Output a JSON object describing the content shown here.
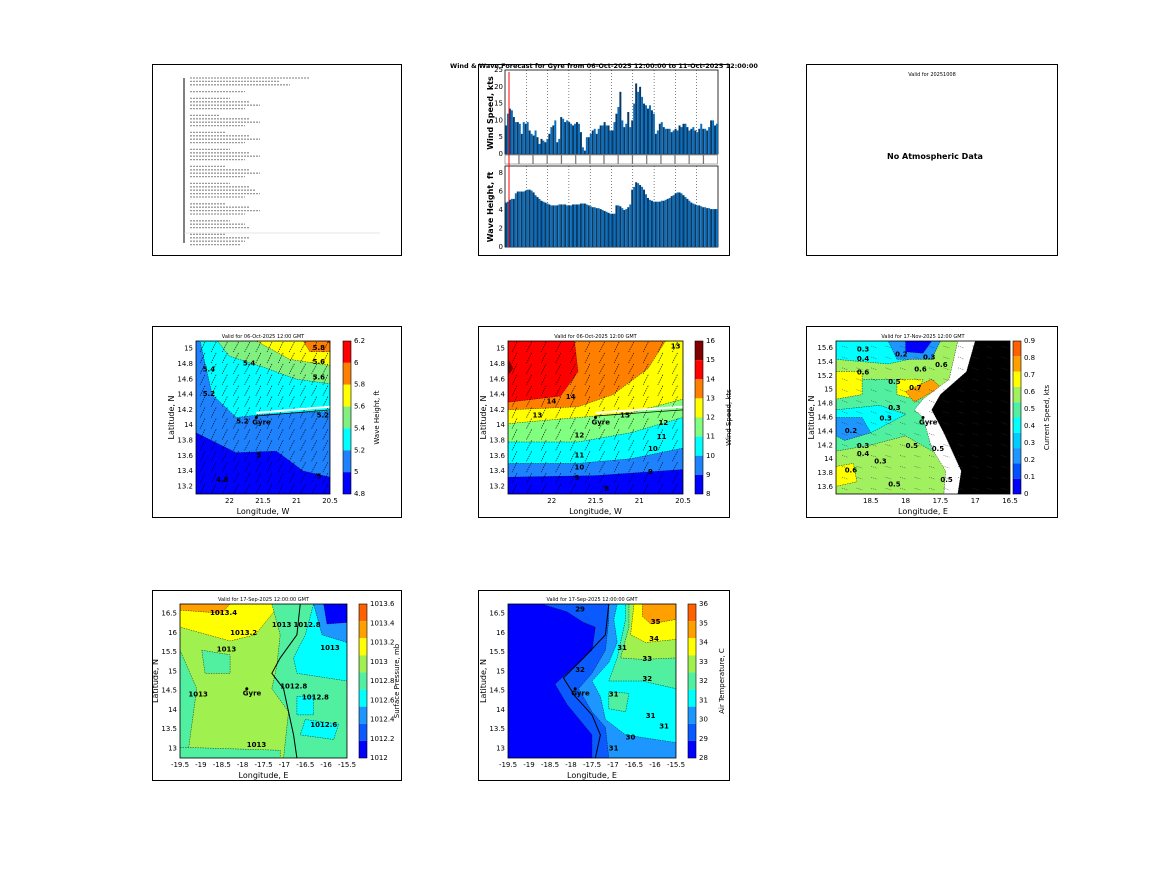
{
  "panels": {
    "summary": {
      "name": "forecast-summary-text"
    },
    "wind_wave": {
      "title": "Wind & Wave Forecast for Gyre from 06-Oct-2025 12:00:00 to 11-Oct-2025 12:00:00",
      "wind_ylabel": "Wind Speed, kts",
      "wave_ylabel": "Wave Height, ft",
      "wind_yticks": [
        "0",
        "5",
        "10",
        "15",
        "20",
        "25"
      ],
      "wave_yticks": [
        "0",
        "2",
        "4",
        "6",
        "8"
      ]
    },
    "atmos": {
      "title": "Valid for 20251008",
      "message": "No Atmospheric Data"
    },
    "wave_map": {
      "title": "Valid for 06-Oct-2025 12:00 GMT",
      "xlabel": "Longitude, W",
      "ylabel": "Latitude, N",
      "cbar_label": "Wave Height, ft",
      "xticks": [
        "22",
        "21.5",
        "21",
        "20.5"
      ],
      "yticks": [
        "15",
        "14.8",
        "14.6",
        "14.4",
        "14.2",
        "14",
        "13.8",
        "13.6",
        "13.4",
        "13.2"
      ],
      "cbar_ticks": [
        "6.2",
        "6",
        "5.8",
        "5.6",
        "5.4",
        "5.2",
        "5",
        "4.8"
      ],
      "contour_labels": [
        "5.4",
        "5.6",
        "5.8",
        "5.6",
        "5.4",
        "5.2",
        "5.2",
        "5.2",
        "5",
        "5",
        "4.8"
      ],
      "site": "Gyre"
    },
    "wind_map": {
      "title": "Valid for 06-Oct-2025 12:00 GMT",
      "xlabel": "Longitude, W",
      "ylabel": "Latitude, N",
      "cbar_label": "Wind Speed, kts",
      "xticks": [
        "22",
        "21.5",
        "21",
        "20.5"
      ],
      "yticks": [
        "15",
        "14.8",
        "14.6",
        "14.4",
        "14.2",
        "14",
        "13.8",
        "13.6",
        "13.4",
        "13.2"
      ],
      "cbar_ticks": [
        "16",
        "15",
        "14",
        "13",
        "12",
        "11",
        "10",
        "9",
        "8"
      ],
      "contour_labels": [
        "15",
        "13",
        "14",
        "14",
        "13",
        "12",
        "12",
        "11",
        "11",
        "10",
        "10",
        "9",
        "9",
        "8"
      ],
      "site": "Gyre"
    },
    "current_map": {
      "title": "Valid for 17-Nov-2025 12:00 GMT",
      "xlabel": "Longitude, E",
      "ylabel": "Latitude, N",
      "cbar_label": "Current Speed, kts",
      "xticks": [
        "18.5",
        "18",
        "17.5",
        "17",
        "16.5"
      ],
      "yticks": [
        "15.6",
        "15.4",
        "15.2",
        "15",
        "14.8",
        "14.6",
        "14.4",
        "14.2",
        "14",
        "13.8",
        "13.6"
      ],
      "cbar_ticks": [
        "0.9",
        "0.8",
        "0.7",
        "0.6",
        "0.5",
        "0.4",
        "0.3",
        "0.2",
        "0.1",
        "0"
      ],
      "contour_labels": [
        "0.3",
        "0.4",
        "0.6",
        "0.2",
        "0.3",
        "0.6",
        "0.6",
        "0.7",
        "0.5",
        "0.3",
        "0.3",
        "0.2",
        "0.3",
        "0.4",
        "0.3",
        "0.6",
        "0.5",
        "0.5",
        "0.5",
        "0.5"
      ],
      "site": "Gyre"
    },
    "pressure_map": {
      "title": "Valid for 17-Sep-2025 12:00:00 GMT",
      "xlabel": "Longitude, E",
      "ylabel": "Latitude, N",
      "cbar_label": "Surface Pressure, mb",
      "xticks": [
        "-19.5",
        "-19",
        "-18.5",
        "-18",
        "-17.5",
        "-17",
        "-16.5",
        "-16",
        "-15.5"
      ],
      "yticks": [
        "16.5",
        "16",
        "15.5",
        "15",
        "14.5",
        "14",
        "13.5",
        "13"
      ],
      "cbar_ticks": [
        "1013.6",
        "1013.4",
        "1013.2",
        "1013",
        "1012.8",
        "1012.6",
        "1012.4",
        "1012.2",
        "1012"
      ],
      "contour_labels": [
        "1013.4",
        "1013.2",
        "1013",
        "1013",
        "1013",
        "1013",
        "1012.8",
        "1012.8",
        "1012.8",
        "1012.6",
        "1013"
      ],
      "site": "Gyre"
    },
    "temp_map": {
      "title": "Valid for 17-Sep-2025 12:00:00 GMT",
      "xlabel": "Longitude, E",
      "ylabel": "Latitude, N",
      "cbar_label": "Air Temperature, C",
      "xticks": [
        "-19.5",
        "-19",
        "-18.5",
        "-18",
        "-17.5",
        "-17",
        "-16.5",
        "-16",
        "-15.5"
      ],
      "yticks": [
        "16.5",
        "16",
        "15.5",
        "15",
        "14.5",
        "14",
        "13.5",
        "13"
      ],
      "cbar_ticks": [
        "36",
        "35",
        "34",
        "33",
        "32",
        "31",
        "30",
        "29",
        "28"
      ],
      "contour_labels": [
        "29",
        "35",
        "34",
        "33",
        "32",
        "31",
        "31",
        "31",
        "32",
        "31",
        "30",
        "31"
      ],
      "site": "Gyre"
    }
  },
  "colors": {
    "bar": "#0a6ebd",
    "now_line": "#ff0000",
    "wave_cmap": [
      "#0000ff",
      "#1e82ff",
      "#00ffff",
      "#80f080",
      "#ffff00",
      "#ff8000",
      "#ff0000"
    ],
    "wind_cmap": [
      "#0000ff",
      "#1e82ff",
      "#00ffff",
      "#80ff80",
      "#ffff00",
      "#ff8000",
      "#ff0000",
      "#800000"
    ],
    "current_cmap": [
      "#0000ff",
      "#0050ff",
      "#1e96ff",
      "#00ccff",
      "#00ffff",
      "#50f0a0",
      "#a0f060",
      "#ffff00",
      "#ffa000",
      "#ff6000"
    ],
    "pressure_cmap": [
      "#0000ff",
      "#0a5aff",
      "#1e96ff",
      "#00ffff",
      "#50f0a0",
      "#a0f050",
      "#ffff00",
      "#ffa000",
      "#ff6000"
    ],
    "temp_cmap": [
      "#0000ff",
      "#0a5aff",
      "#1e96ff",
      "#00ffff",
      "#50f0a0",
      "#a0f050",
      "#ffff00",
      "#ffa000",
      "#ff6000"
    ]
  },
  "chart_data": [
    {
      "type": "bar",
      "title": "Wind & Wave Forecast for Gyre",
      "ylabel": "Wind Speed, kts",
      "ylim": [
        0,
        25
      ],
      "values": [
        8.5,
        12,
        13.5,
        13,
        11,
        9.5,
        9.5,
        9,
        6,
        9.5,
        9,
        9.5,
        7,
        6,
        5.5,
        7,
        5,
        3,
        4.5,
        4,
        3.5,
        4.5,
        6,
        8,
        8.5,
        10,
        3.5,
        4.5,
        11,
        10.5,
        9.5,
        10,
        9.5,
        9,
        8.5,
        9,
        9.5,
        9,
        6.5,
        2,
        1,
        5,
        5,
        6,
        7,
        7.5,
        6,
        7.5,
        8.5,
        8.5,
        9.5,
        8.5,
        8.5,
        7,
        7,
        9.5,
        12,
        14,
        18.5,
        10,
        8,
        9,
        12.5,
        8,
        10,
        15,
        21,
        18.5,
        20,
        17,
        15,
        14.5,
        13.5,
        14.5,
        13,
        12,
        6,
        7,
        9,
        9.5,
        8,
        7.5,
        7.5,
        7.5,
        6.5,
        7,
        7.5,
        7,
        8.5,
        8,
        9,
        9,
        8,
        7,
        7.5,
        8,
        7,
        6.5,
        7.5,
        9,
        7.5,
        7.5,
        7,
        8,
        10,
        10,
        8.5,
        9
      ]
    },
    {
      "type": "bar",
      "title": "Wave Height",
      "ylabel": "Wave Height, ft",
      "ylim": [
        0,
        8
      ],
      "values": [
        4.8,
        4.9,
        5.1,
        5.2,
        5.2,
        5.8,
        6,
        6,
        6,
        6,
        6.1,
        6.2,
        6.2,
        6.1,
        5.9,
        5.6,
        5.4,
        5.2,
        5,
        4.9,
        4.8,
        4.7,
        4.6,
        4.5,
        4.5,
        4.5,
        4.5,
        4.6,
        4.6,
        4.6,
        4.6,
        4.5,
        4.5,
        4.5,
        4.6,
        4.6,
        4.6,
        4.6,
        4.7,
        4.7,
        4.7,
        4.6,
        4.5,
        4.4,
        4.3,
        4.3,
        4.2,
        4.2,
        4.1,
        4,
        3.9,
        3.8,
        3.7,
        3.6,
        3.6,
        3.6,
        4.5,
        4.5,
        4.4,
        4.2,
        4,
        4.1,
        4.3,
        4.6,
        6.2,
        6.5,
        7,
        6.9,
        6.7,
        6.5,
        6.2,
        5.7,
        5.3,
        5.1,
        5,
        4.9,
        4.9,
        4.9,
        4.9,
        5,
        5,
        5.1,
        5.2,
        5.3,
        5.5,
        5.6,
        5.8,
        5.9,
        5.9,
        5.8,
        5.6,
        5.4,
        5.2,
        5,
        4.8,
        4.7,
        4.6,
        4.5,
        4.5,
        4.4,
        4.3,
        4.3,
        4.2,
        4.2,
        4.1,
        4.1,
        4.1,
        4.1
      ]
    }
  ]
}
